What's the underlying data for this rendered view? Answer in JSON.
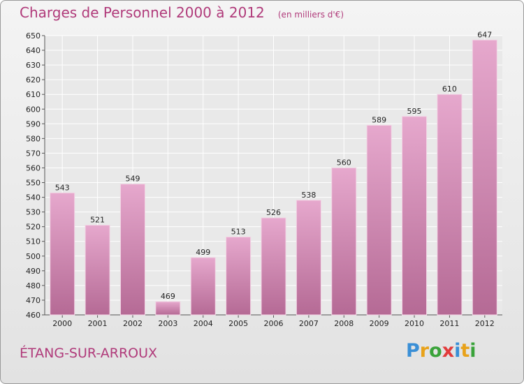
{
  "header": {
    "title": "Charges de Personnel 2000 à 2012",
    "subtitle": "(en milliers d'€)"
  },
  "footer": {
    "commune": "ÉTANG-SUR-ARROUX",
    "logo": {
      "letters": [
        "P",
        "r",
        "o",
        "x",
        "i",
        "t",
        "i"
      ],
      "colors": [
        "#3a8fd6",
        "#e8a21a",
        "#3aa33a",
        "#e23b3b",
        "#3a8fd6",
        "#e8a21a",
        "#3aa33a"
      ]
    }
  },
  "chart_data": {
    "type": "bar",
    "title": "Charges de Personnel 2000 à 2012",
    "subtitle": "(en milliers d'€)",
    "categories": [
      "2000",
      "2001",
      "2002",
      "2003",
      "2004",
      "2005",
      "2006",
      "2007",
      "2008",
      "2009",
      "2010",
      "2011",
      "2012"
    ],
    "values": [
      543,
      521,
      549,
      469,
      499,
      513,
      526,
      538,
      560,
      589,
      595,
      610,
      647
    ],
    "ylim": [
      460,
      650
    ],
    "yticks": [
      460,
      470,
      480,
      490,
      500,
      510,
      520,
      530,
      540,
      550,
      560,
      570,
      580,
      590,
      600,
      610,
      620,
      630,
      640,
      650
    ],
    "grid": true,
    "bar_color": "#d88fb8",
    "bar_color_dark": "#b56a95"
  }
}
